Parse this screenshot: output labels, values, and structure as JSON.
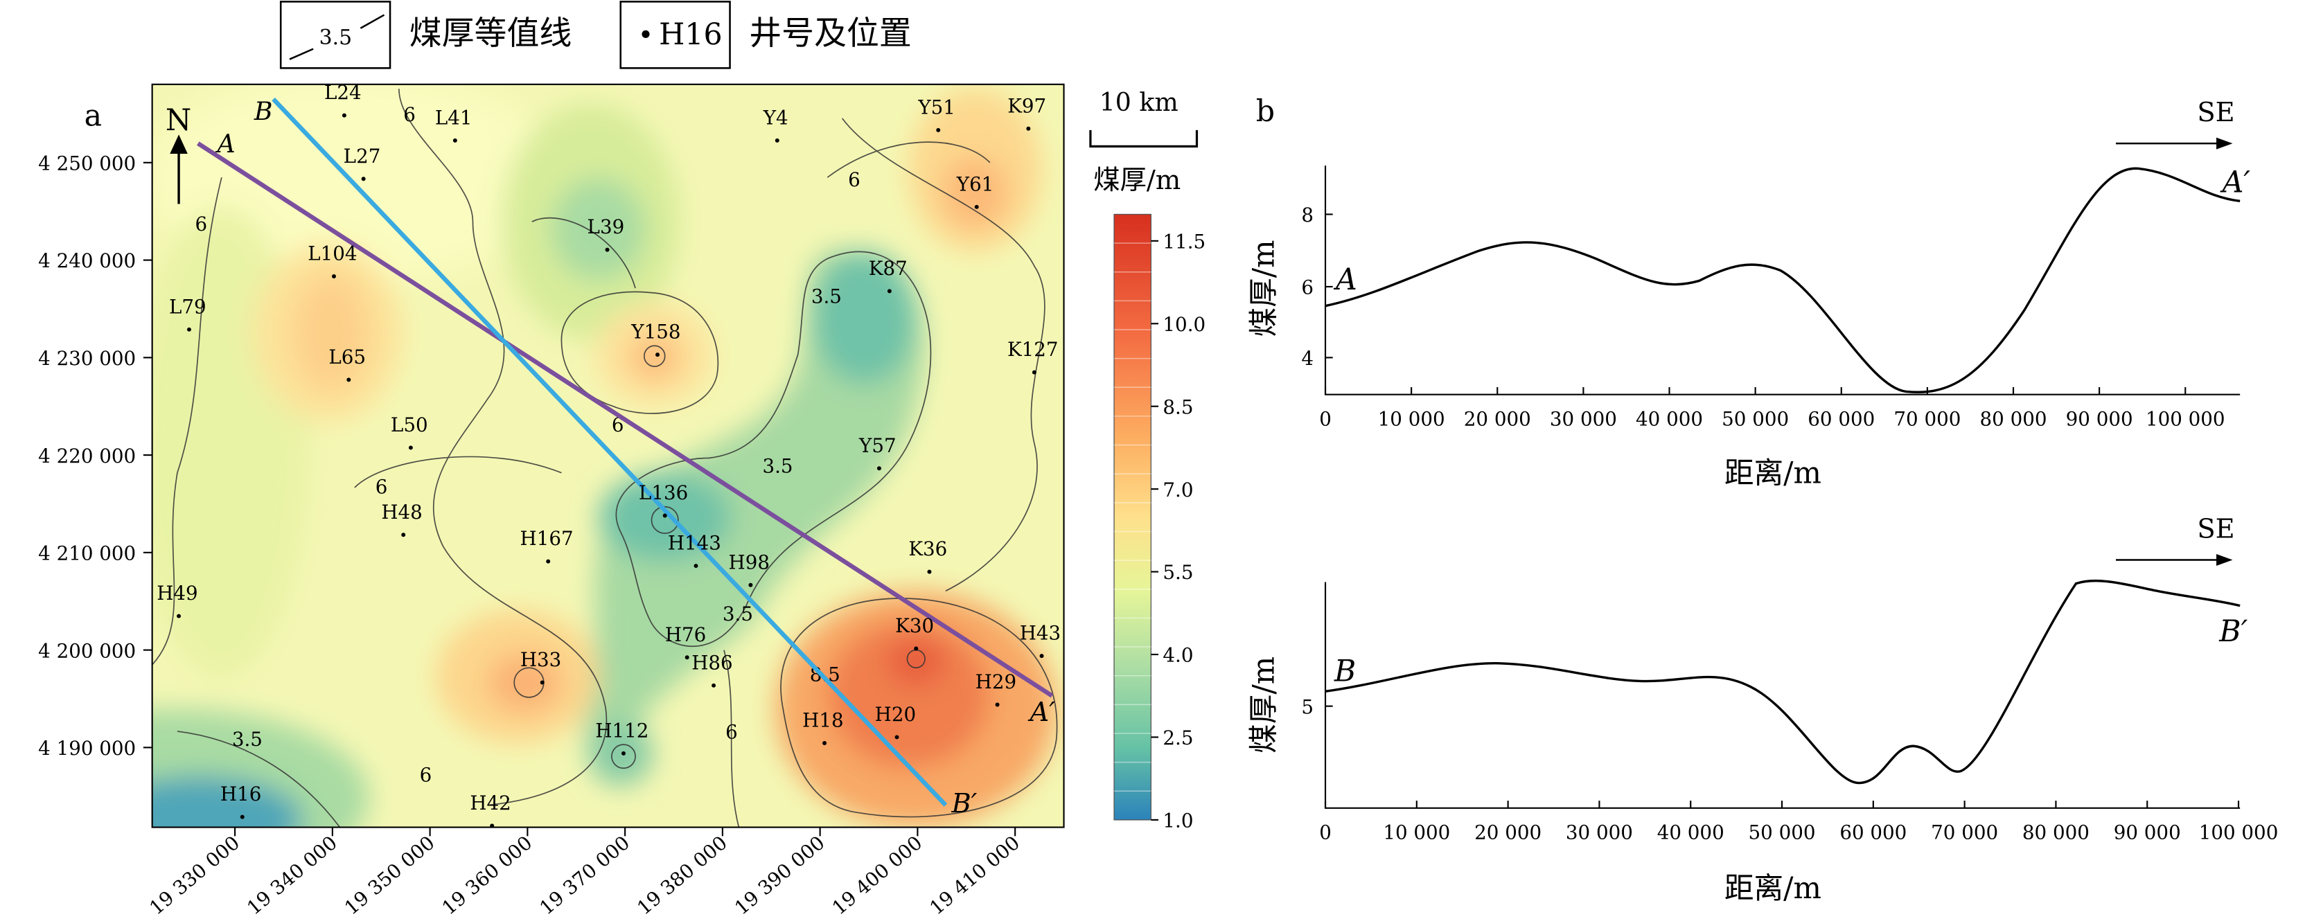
{
  "legend": {
    "contour_sample": "3.5",
    "contour_label": "煤厚等值线",
    "well_sample": "H16",
    "well_label": "井号及位置"
  },
  "map": {
    "panel_label": "a",
    "north": "N",
    "scale_text": "10 km",
    "colorbar_title": "煤厚/m",
    "colorbar_ticks": [
      "11.5",
      "10.0",
      "8.5",
      "7.0",
      "5.5",
      "4.0",
      "2.5",
      "1.0"
    ],
    "y_ticks": [
      "4 250 000",
      "4 240 000",
      "4 230 000",
      "4 220 000",
      "4 210 000",
      "4 200 000",
      "4 190 000"
    ],
    "x_ticks": [
      "19 330 000",
      "19 340 000",
      "19 350 000",
      "19 360 000",
      "19 370 000",
      "19 380 000",
      "19 390 000",
      "19 400 000",
      "19 410 000"
    ],
    "contour_labels": [
      {
        "text": "6"
      },
      {
        "text": "6"
      },
      {
        "text": "6"
      },
      {
        "text": "6"
      },
      {
        "text": "6"
      },
      {
        "text": "6"
      },
      {
        "text": "6"
      },
      {
        "text": "3.5"
      },
      {
        "text": "3.5"
      },
      {
        "text": "3.5"
      },
      {
        "text": "3.5"
      },
      {
        "text": "8.5"
      }
    ],
    "wells": [
      "L24",
      "L41",
      "Y4",
      "Y51",
      "K97",
      "L27",
      "Y61",
      "L39",
      "L104",
      "K87",
      "L79",
      "Y158",
      "L65",
      "K127",
      "L50",
      "Y57",
      "H48",
      "L136",
      "H167",
      "H143",
      "H98",
      "K36",
      "H49",
      "H76",
      "H86",
      "K30",
      "H43",
      "H33",
      "H29",
      "H18",
      "H20",
      "H112",
      "H16",
      "H42"
    ],
    "line_a": {
      "start": "A",
      "end": "A′",
      "color": "#7b4f9d"
    },
    "line_b": {
      "start": "B",
      "end": "B′",
      "color": "#3aaae0"
    }
  },
  "profiles": {
    "panel_label": "b",
    "direction": "SE",
    "ylabel": "煤厚/m",
    "xlabel": "距离/m",
    "top": {
      "start": "A",
      "end": "A′",
      "y_ticks": [
        "8",
        "6",
        "4"
      ],
      "x_ticks": [
        "0",
        "10 000",
        "20 000",
        "30 000",
        "40 000",
        "50 000",
        "60 000",
        "70 000",
        "80 000",
        "90 000",
        "100 000"
      ]
    },
    "bottom": {
      "start": "B",
      "end": "B′",
      "y_ticks": [
        "5"
      ],
      "x_ticks": [
        "0",
        "10 000",
        "20 000",
        "30 000",
        "40 000",
        "50 000",
        "60 000",
        "70 000",
        "80 000",
        "90 000",
        "100 000"
      ]
    }
  },
  "colors": {
    "thick": "#d7301f",
    "thin": "#2b83ba",
    "mid": "#ffffbf"
  }
}
